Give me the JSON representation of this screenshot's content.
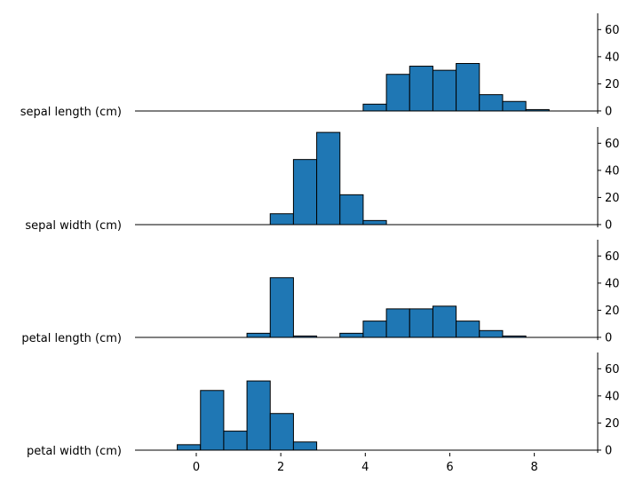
{
  "chart_data": {
    "type": "bar",
    "layout": "stacked-histograms",
    "bar_color": "#1f77b4",
    "edge_color": "#000000",
    "grid": false,
    "legend": "none",
    "xlim": [
      -1.45,
      9.5
    ],
    "xticks": [
      0,
      2,
      4,
      6,
      8
    ],
    "xtick_labels": [
      "0",
      "2",
      "4",
      "6",
      "8"
    ],
    "yaxis_side": "right",
    "ylim": [
      -2,
      72
    ],
    "yticks": [
      0,
      20,
      40,
      60
    ],
    "ytick_labels": [
      "0",
      "20",
      "40",
      "60"
    ],
    "bin_edges": [
      -0.45,
      0.1,
      0.65,
      1.2,
      1.75,
      2.3,
      2.85,
      3.4,
      3.95,
      4.5,
      5.05,
      5.6,
      6.15,
      6.7,
      7.25,
      7.8,
      8.35,
      8.9
    ],
    "panels": [
      {
        "label": "sepal length (cm)",
        "values": [
          0,
          0,
          0,
          0,
          0,
          0,
          0,
          0,
          5,
          27,
          33,
          30,
          35,
          12,
          7,
          1,
          0
        ]
      },
      {
        "label": "sepal width (cm)",
        "values": [
          0,
          0,
          0,
          0,
          8,
          48,
          68,
          22,
          3,
          0,
          0,
          0,
          0,
          0,
          0,
          0,
          0
        ]
      },
      {
        "label": "petal length (cm)",
        "values": [
          0,
          0,
          0,
          3,
          44,
          1,
          0,
          3,
          12,
          21,
          21,
          23,
          12,
          5,
          1,
          0,
          0
        ]
      },
      {
        "label": "petal width (cm)",
        "values": [
          4,
          44,
          14,
          51,
          27,
          6,
          0,
          0,
          0,
          0,
          0,
          0,
          0,
          0,
          0,
          0,
          0
        ]
      }
    ]
  }
}
